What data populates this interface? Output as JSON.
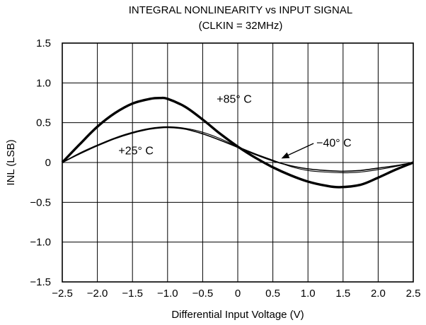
{
  "chart_data": {
    "type": "line",
    "title": "INTEGRAL NONLINEARITY vs INPUT SIGNAL",
    "subtitle": "(CLKIN = 32MHz)",
    "xlabel": "Differential Input Voltage (V)",
    "ylabel": "INL (LSB)",
    "xlim": [
      -2.5,
      2.5
    ],
    "ylim": [
      -1.5,
      1.5
    ],
    "xticks": [
      -2.5,
      -2.0,
      -1.5,
      -1.0,
      -0.5,
      0,
      0.5,
      1.0,
      1.5,
      2.0,
      2.5
    ],
    "xtick_labels": [
      "−2.5",
      "−2.0",
      "−1.5",
      "−1.0",
      "−0.5",
      "0",
      "0.5",
      "1.0",
      "1.5",
      "2.0",
      "2.5"
    ],
    "yticks": [
      1.5,
      1.0,
      0.5,
      0,
      -0.5,
      -1.0,
      -1.5
    ],
    "ytick_labels": [
      "1.5",
      "1.0",
      "0.5",
      "0",
      "−0.5",
      "−1.0",
      "−1.5"
    ],
    "grid": true,
    "series": [
      {
        "name": "+85°C",
        "label": "+85° C",
        "x": [
          -2.5,
          -2.25,
          -2.0,
          -1.75,
          -1.5,
          -1.25,
          -1.1,
          -1.0,
          -0.75,
          -0.5,
          -0.25,
          0.0,
          0.25,
          0.5,
          0.75,
          1.0,
          1.25,
          1.45,
          1.75,
          2.0,
          2.25,
          2.5
        ],
        "y": [
          0.0,
          0.23,
          0.45,
          0.62,
          0.74,
          0.8,
          0.81,
          0.8,
          0.7,
          0.54,
          0.36,
          0.2,
          0.06,
          -0.06,
          -0.16,
          -0.24,
          -0.29,
          -0.31,
          -0.28,
          -0.19,
          -0.09,
          0.0
        ]
      },
      {
        "name": "+25°C",
        "label": "+25° C",
        "x": [
          -2.5,
          -2.25,
          -2.0,
          -1.75,
          -1.5,
          -1.25,
          -1.0,
          -0.75,
          -0.5,
          -0.25,
          0.0,
          0.25,
          0.5,
          0.75,
          1.0,
          1.25,
          1.5,
          1.75,
          2.0,
          2.25,
          2.5
        ],
        "y": [
          0.0,
          0.11,
          0.21,
          0.3,
          0.37,
          0.42,
          0.44,
          0.42,
          0.36,
          0.28,
          0.19,
          0.1,
          0.02,
          -0.04,
          -0.08,
          -0.1,
          -0.11,
          -0.1,
          -0.07,
          -0.04,
          0.0
        ]
      },
      {
        "name": "−40°C",
        "label": "−40° C",
        "x": [
          -2.5,
          -2.25,
          -2.0,
          -1.75,
          -1.5,
          -1.25,
          -1.0,
          -0.75,
          -0.5,
          -0.25,
          0.0,
          0.25,
          0.5,
          0.75,
          1.0,
          1.25,
          1.5,
          1.75,
          2.0,
          2.25,
          2.5
        ],
        "y": [
          0.0,
          0.12,
          0.22,
          0.31,
          0.38,
          0.43,
          0.45,
          0.43,
          0.38,
          0.3,
          0.2,
          0.11,
          0.03,
          -0.05,
          -0.1,
          -0.12,
          -0.13,
          -0.12,
          -0.09,
          -0.05,
          0.0
        ]
      }
    ]
  }
}
